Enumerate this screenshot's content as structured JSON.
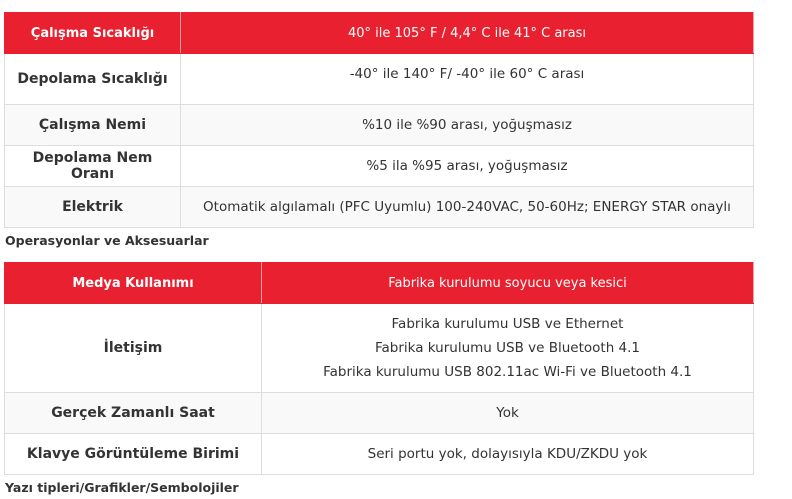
{
  "table1": {
    "header": {
      "key": "Çalışma Sıcaklığı",
      "value": "40° ile 105° F / 4,4° C ile 41° C arası"
    },
    "rows": [
      {
        "key": "Depolama Sıcaklığı",
        "value": "-40° ile 140° F/ -40° ile 60° C arası"
      },
      {
        "key": "Çalışma Nemi",
        "value": "%10 ile %90 arası, yoğuşmasız"
      },
      {
        "key": "Depolama Nem Oranı",
        "value": "%5 ila %95 arası, yoğuşmasız"
      },
      {
        "key": "Elektrik",
        "value": "Otomatik algılamalı (PFC Uyumlu) 100-240VAC, 50-60Hz; ENERGY STAR onaylı"
      }
    ]
  },
  "caption1": "Operasyonlar ve Aksesuarlar",
  "table2": {
    "header": {
      "key": "Medya Kullanımı",
      "value": "Fabrika kurulumu soyucu veya kesici"
    },
    "rows": [
      {
        "key": "İletişim",
        "values": [
          "Fabrika kurulumu USB ve Ethernet",
          "Fabrika kurulumu USB ve Bluetooth 4.1",
          "Fabrika kurulumu USB 802.11ac Wi-Fi ve Bluetooth 4.1"
        ]
      },
      {
        "key": "Gerçek Zamanlı Saat",
        "value": "Yok"
      },
      {
        "key": "Klavye Görüntüleme Birimi",
        "value": "Seri portu yok, dolayısıyla KDU/ZKDU yok"
      }
    ]
  },
  "caption2": "Yazı tipleri/Grafikler/Sembolojiler",
  "colors": {
    "header_bg": "#e8202f",
    "stripe_bg": "#f9f9f9",
    "border": "#dddddd"
  }
}
